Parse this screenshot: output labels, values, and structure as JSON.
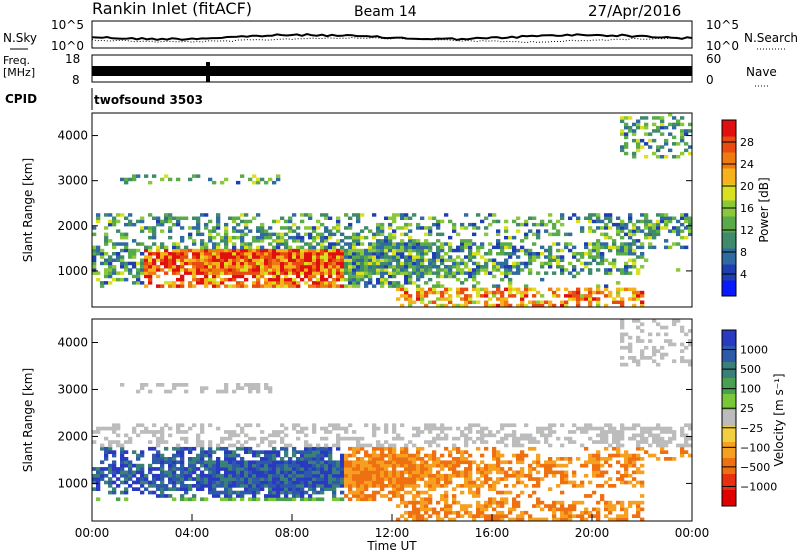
{
  "header": {
    "title": "Rankin Inlet (fitACF)",
    "beam": "Beam 14",
    "date": "27/Apr/2016"
  },
  "panels": {
    "noise": {
      "left_label": "N.Sky",
      "right_label": "N.Search",
      "left_top_tick": "10^5",
      "left_bottom_tick": "10^0",
      "right_top_tick": "10^5",
      "right_bottom_tick": "10^0"
    },
    "freq": {
      "left_label_line1": "Freq.",
      "left_label_line2": "[MHz]",
      "left_top_tick": "18",
      "left_bottom_tick": "8",
      "right_label": "Nave",
      "right_top_tick": "60",
      "right_bottom_tick": "0"
    },
    "cpid": {
      "label": "CPID",
      "program": "twofsound 3503"
    }
  },
  "chart_data": [
    {
      "type": "heatmap",
      "name": "power",
      "ylabel": "Slant Range [km]",
      "xlabel": "",
      "yticks": [
        "1000",
        "2000",
        "3000",
        "4000"
      ],
      "ylim": [
        200,
        4500
      ],
      "colorbar_label": "Power [dB]",
      "colorbar_ticks": [
        "4",
        "8",
        "12",
        "16",
        "20",
        "24",
        "28"
      ],
      "colors": [
        "#0a1aff",
        "#1f3fb0",
        "#2f6aa0",
        "#3f8a6a",
        "#5aaa4a",
        "#8ac83a",
        "#d8e020",
        "#f5b21a",
        "#ef7a12",
        "#e94a10",
        "#e01010"
      ]
    },
    {
      "type": "heatmap",
      "name": "velocity",
      "ylabel": "Slant Range [km]",
      "xlabel": "Time UT",
      "xticks": [
        "00:00",
        "04:00",
        "08:00",
        "12:00",
        "16:00",
        "20:00",
        "00:00"
      ],
      "yticks": [
        "1000",
        "2000",
        "3000",
        "4000"
      ],
      "ylim": [
        200,
        4500
      ],
      "colorbar_label": "Velocity [m s⁻¹]",
      "colorbar_ticks": [
        "1000",
        "500",
        "100",
        "25",
        "−25",
        "−100",
        "−500",
        "−1000"
      ],
      "colors": [
        "#2a3ac0",
        "#2d5aa8",
        "#3a7f7a",
        "#4aa050",
        "#7ac83a",
        "#bcbcbc",
        "#f0d040",
        "#f5a020",
        "#ef7010",
        "#e83010",
        "#e00000"
      ]
    }
  ]
}
